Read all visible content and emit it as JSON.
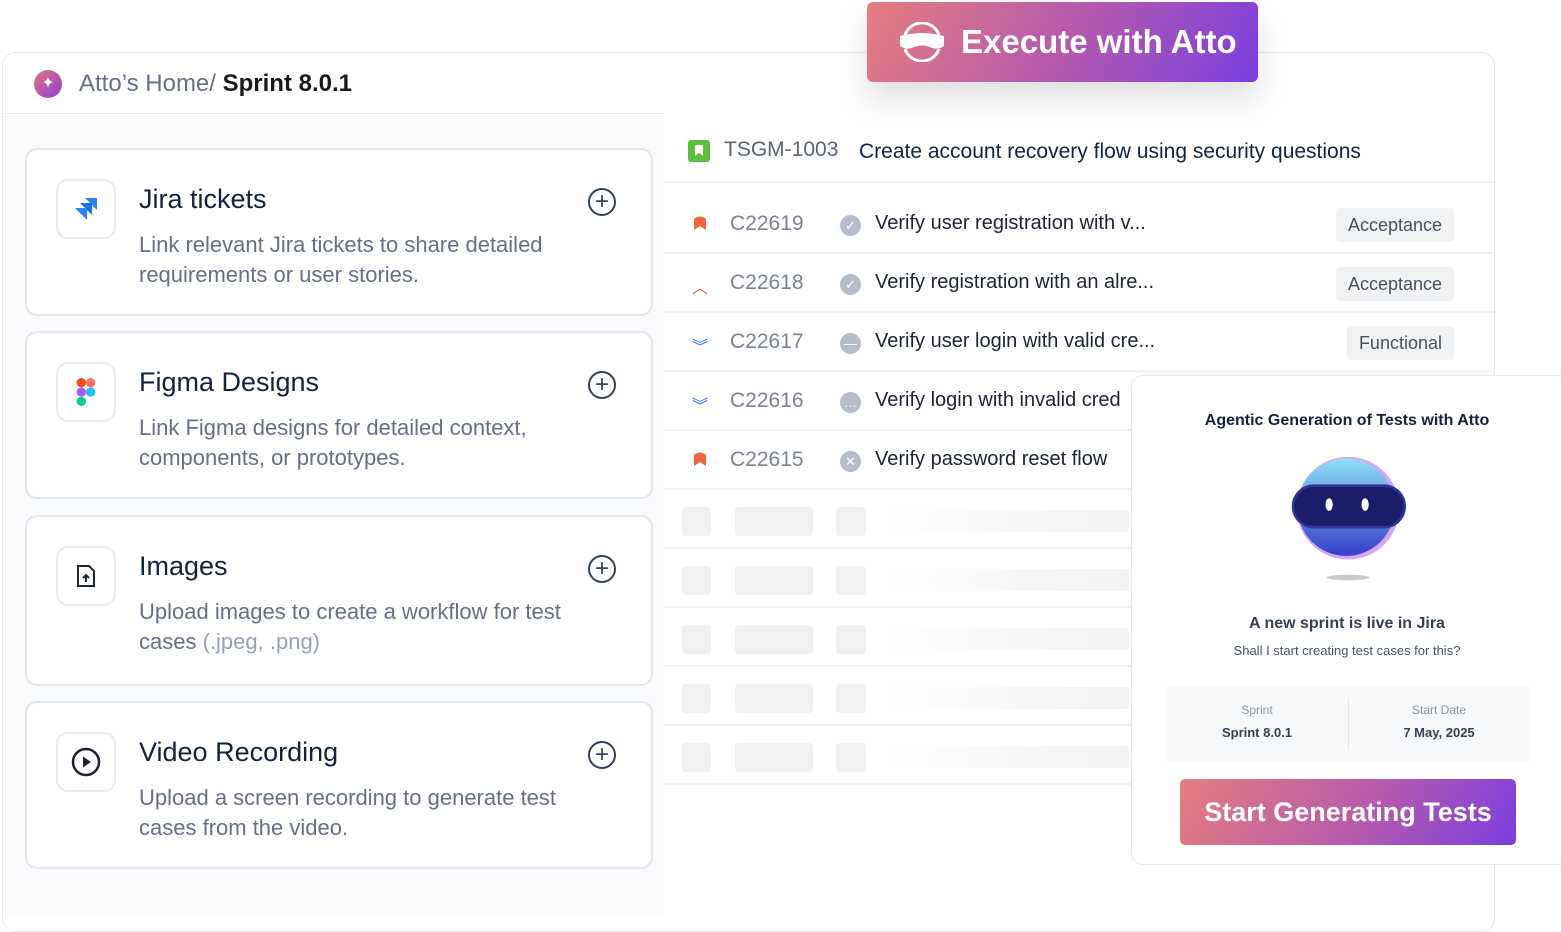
{
  "header": {
    "breadcrumb_parent": "Atto’s Home/",
    "breadcrumb_current": "Sprint 8.0.1"
  },
  "execute_button": {
    "label": "Execute with Atto"
  },
  "sources": [
    {
      "title": "Jira tickets",
      "description": "Link relevant Jira tickets to share detailed requirements or user stories.",
      "icon": "jira-icon"
    },
    {
      "title": "Figma Designs",
      "description": "Link Figma designs for detailed context, components, or prototypes.",
      "icon": "figma-icon"
    },
    {
      "title": "Images",
      "description": "Upload images to create a workflow for test cases",
      "description_muted": "(.jpeg, .png)",
      "icon": "file-upload-icon"
    },
    {
      "title": "Video Recording",
      "description": "Upload a screen recording to generate test cases from the video.",
      "icon": "play-circle-icon"
    }
  ],
  "ticket": {
    "id": "TSGM-1003",
    "title": "Create account recovery flow using security questions"
  },
  "test_cases": [
    {
      "id": "C22619",
      "title": "Verify user registration with v...",
      "tag": "Acceptance",
      "priority": "highest",
      "status": "passed"
    },
    {
      "id": "C22618",
      "title": "Verify registration with an alre...",
      "tag": "Acceptance",
      "priority": "high",
      "status": "passed"
    },
    {
      "id": "C22617",
      "title": "Verify user login with valid cre...",
      "tag": "Functional",
      "priority": "low",
      "status": "blocked"
    },
    {
      "id": "C22616",
      "title": "Verify login with invalid cred",
      "tag": "",
      "priority": "lowest",
      "status": "in-progress"
    },
    {
      "id": "C22615",
      "title": "Verify password reset flow",
      "tag": "",
      "priority": "highest",
      "status": "failed"
    }
  ],
  "popup": {
    "heading": "Agentic Generation of Tests with Atto",
    "message": "A new sprint is live in Jira",
    "question": "Shall I start creating test cases for this?",
    "sprint_label": "Sprint",
    "sprint_value": "Sprint 8.0.1",
    "date_label": "Start Date",
    "date_value": "7 May, 2025",
    "button": "Start Generating Tests"
  },
  "colors": {
    "accent_start": "#e57e7f",
    "accent_end": "#7a3ee0",
    "priority_high": "#f0643c",
    "priority_low": "#1f6ff0"
  }
}
